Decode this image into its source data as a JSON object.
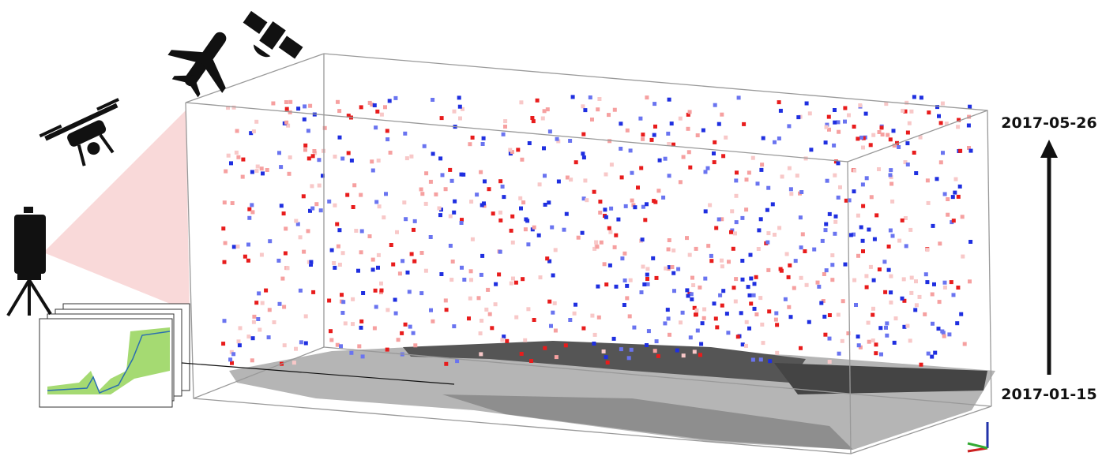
{
  "time_axis": {
    "end_date": "2017-05-26",
    "start_date": "2017-01-15"
  }
}
